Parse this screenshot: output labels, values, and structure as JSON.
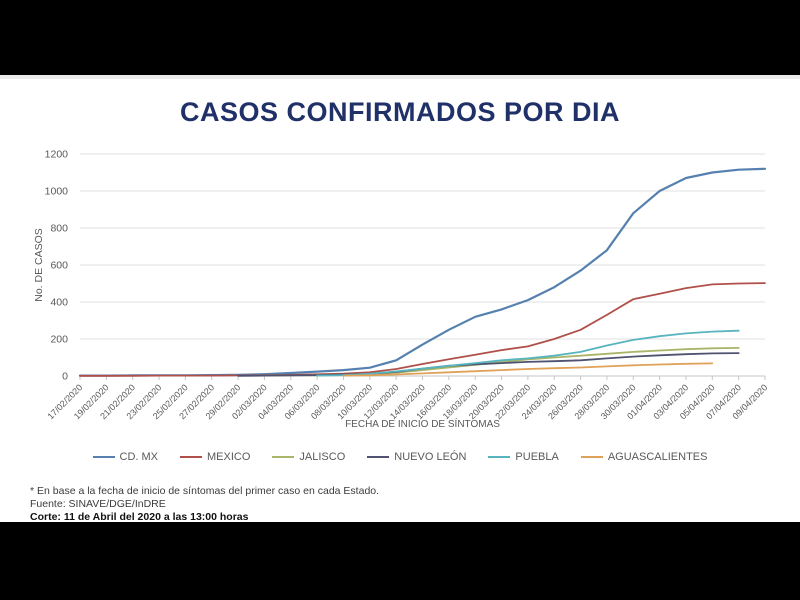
{
  "title": "CASOS CONFIRMADOS POR DIA",
  "colors": {
    "letterbox": "#000000",
    "slide_background": "#ffffff",
    "title_text": "#1F3168",
    "axis_text": "#595959",
    "gridline": "#e2e2e2",
    "axis_line": "#c6c6c6"
  },
  "notes": {
    "footnote": "* En base a la fecha de inicio de síntomas del primer caso en cada Estado.",
    "source": "Fuente: SINAVE/DGE/InDRE",
    "cutoff": "Corte: 11 de Abril del 2020 a las 13:00 horas"
  },
  "chart_data": {
    "type": "line",
    "title": "CASOS CONFIRMADOS POR DIA",
    "xlabel": "FECHA DE INICIO DE SÍNTOMAS",
    "ylabel": "No. DE CASOS",
    "ylim": [
      0,
      1200
    ],
    "ytick_step": 200,
    "yticks": [
      0,
      200,
      400,
      600,
      800,
      1000,
      1200
    ],
    "grid": true,
    "legend_position": "bottom",
    "x": [
      "17/02/2020",
      "19/02/2020",
      "21/02/2020",
      "23/02/2020",
      "25/02/2020",
      "27/02/2020",
      "29/02/2020",
      "02/03/2020",
      "04/03/2020",
      "06/03/2020",
      "08/03/2020",
      "10/03/2020",
      "12/03/2020",
      "14/03/2020",
      "16/03/2020",
      "18/03/2020",
      "20/03/2020",
      "22/03/2020",
      "24/03/2020",
      "26/03/2020",
      "28/03/2020",
      "30/03/2020",
      "01/04/2020",
      "03/04/2020",
      "05/04/2020",
      "07/04/2020",
      "09/04/2020"
    ],
    "series": [
      {
        "name": "CD. MX",
        "color": "#5580B0",
        "values": [
          2,
          2,
          3,
          3,
          4,
          5,
          6,
          10,
          16,
          24,
          32,
          45,
          85,
          170,
          250,
          320,
          360,
          410,
          480,
          570,
          680,
          880,
          1000,
          1070,
          1100,
          1115,
          1120
        ]
      },
      {
        "name": "MEXICO",
        "color": "#B0504A",
        "values": [
          1,
          1,
          1,
          2,
          2,
          2,
          3,
          4,
          6,
          9,
          13,
          20,
          38,
          65,
          90,
          115,
          140,
          160,
          200,
          250,
          330,
          415,
          445,
          475,
          495,
          500,
          502
        ]
      },
      {
        "name": "JALISCO",
        "color": "#A9B568",
        "values": [
          null,
          null,
          null,
          null,
          null,
          null,
          null,
          2,
          3,
          4,
          6,
          10,
          18,
          32,
          46,
          60,
          75,
          90,
          100,
          110,
          120,
          130,
          138,
          145,
          150,
          152,
          null
        ]
      },
      {
        "name": "NUEVO LEÓN",
        "color": "#4F5370",
        "values": [
          null,
          null,
          null,
          null,
          null,
          null,
          1,
          2,
          3,
          5,
          8,
          12,
          22,
          40,
          55,
          63,
          70,
          76,
          80,
          85,
          95,
          105,
          112,
          118,
          122,
          124,
          null
        ]
      },
      {
        "name": "PUEBLA",
        "color": "#58B4BE",
        "values": [
          null,
          null,
          null,
          null,
          null,
          null,
          null,
          null,
          null,
          2,
          5,
          12,
          25,
          40,
          55,
          70,
          85,
          95,
          110,
          130,
          165,
          195,
          215,
          230,
          240,
          245,
          null
        ]
      },
      {
        "name": "AGUASCALIENTES",
        "color": "#E0A159",
        "values": [
          null,
          null,
          null,
          null,
          null,
          null,
          null,
          null,
          null,
          null,
          2,
          4,
          8,
          14,
          20,
          26,
          32,
          38,
          42,
          46,
          52,
          58,
          62,
          66,
          68,
          null,
          null
        ]
      }
    ]
  }
}
